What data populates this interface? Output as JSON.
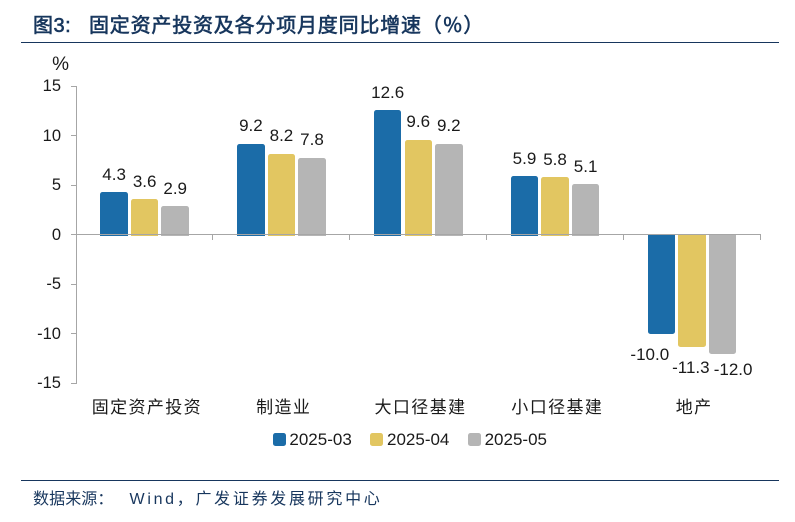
{
  "figure": {
    "label": "图3:",
    "title": "固定资产投资及各分项月度同比增速（％）"
  },
  "chart_data": {
    "type": "bar",
    "title": "固定资产投资及各分项月度同比增速（％）",
    "unit_label": "%",
    "categories": [
      "固定资产投资",
      "制造业",
      "大口径基建",
      "小口径基建",
      "地产"
    ],
    "series": [
      {
        "name": "2025-03",
        "color": "#1B6CA8",
        "values": [
          4.3,
          9.2,
          12.6,
          5.9,
          -10.0
        ],
        "labels": [
          "4.3",
          "9.2",
          "12.6",
          "5.9",
          "-10.0"
        ]
      },
      {
        "name": "2025-04",
        "color": "#E2C661",
        "values": [
          3.6,
          8.2,
          9.6,
          5.8,
          -11.3
        ],
        "labels": [
          "3.6",
          "8.2",
          "9.6",
          "5.8",
          "-11.3"
        ]
      },
      {
        "name": "2025-05",
        "color": "#B5B5B5",
        "values": [
          2.9,
          7.8,
          9.2,
          5.1,
          -12.0
        ],
        "labels": [
          "2.9",
          "7.8",
          "9.2",
          "5.1",
          "-12.0"
        ]
      }
    ],
    "y_axis": {
      "min": -15,
      "max": 15,
      "step": 5,
      "tick_labels": [
        "15",
        "10",
        "5",
        "0",
        "-5",
        "-10",
        "-15"
      ]
    },
    "grid": false,
    "legend_position": "bottom"
  },
  "footer": {
    "source_label": "数据来源：",
    "source_text": "Wind，广发证券发展研究中心"
  },
  "colors": {
    "navy": "#17365D",
    "axis": "#A6A6A6",
    "text": "#1A1A1A"
  }
}
